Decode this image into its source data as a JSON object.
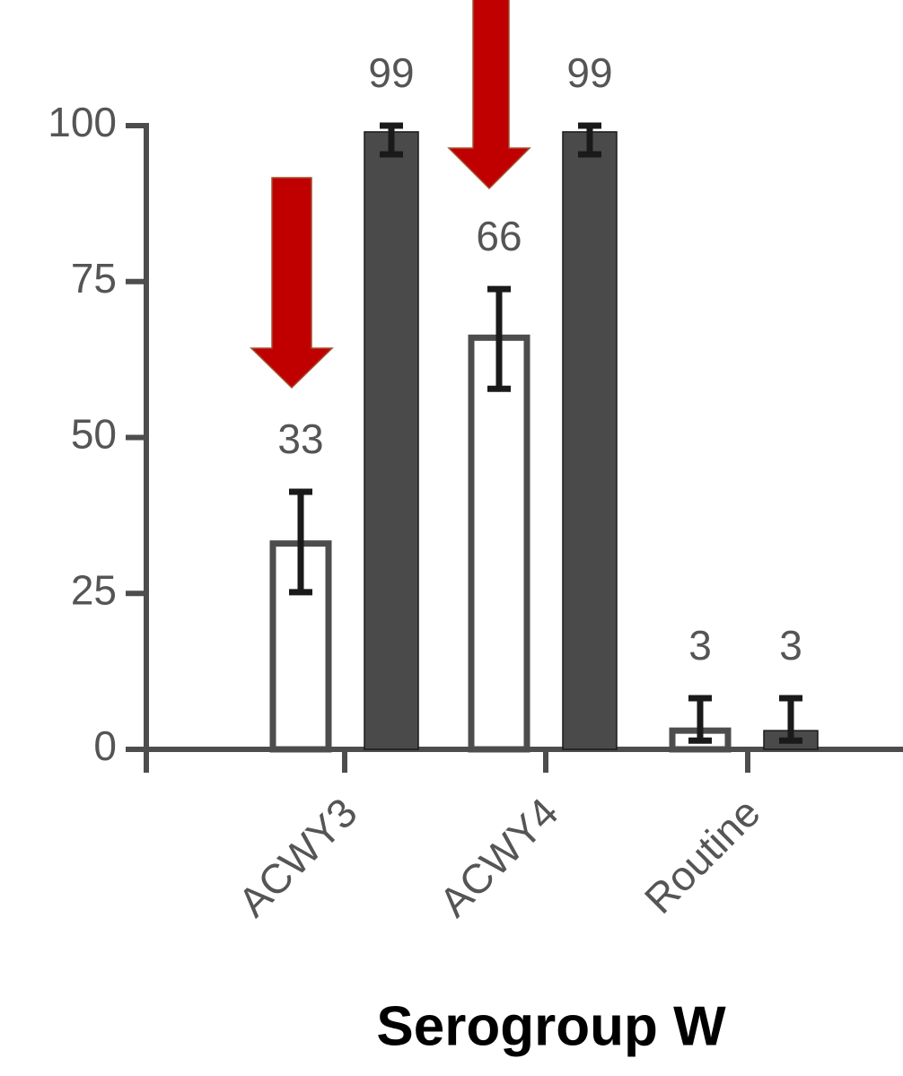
{
  "chart_data": {
    "type": "bar",
    "x_label": "Serogroup W",
    "categories": [
      "ACWY3",
      "ACWY4",
      "Routine"
    ],
    "series": [
      {
        "color": "#ffffff",
        "values": [
          33,
          66,
          3
        ],
        "ci_low": [
          25.2,
          57.8,
          1.4
        ],
        "ci_high": [
          41.3,
          73.8,
          8.2
        ]
      },
      {
        "color": "#4a4a4a",
        "values": [
          99,
          99,
          3
        ],
        "ci_low": [
          95.4,
          95.4,
          1.4
        ],
        "ci_high": [
          100,
          100,
          8.2
        ]
      }
    ],
    "ylim": [
      0,
      100
    ],
    "yticks": [
      0,
      25,
      50,
      75,
      100
    ]
  }
}
